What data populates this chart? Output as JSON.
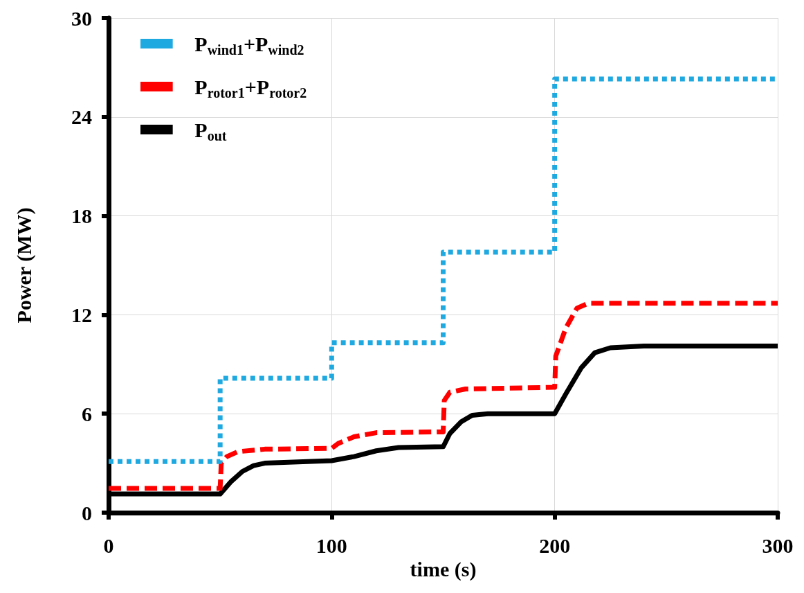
{
  "chart_data": {
    "type": "line",
    "xlabel": "time (s)",
    "ylabel": "Power (MW)",
    "xlim": [
      0,
      300
    ],
    "xticks": [
      0,
      100,
      200,
      300
    ],
    "ylim": [
      0,
      30
    ],
    "yticks": [
      0,
      6,
      12,
      18,
      24,
      30
    ],
    "grid": true,
    "legend": "top left",
    "series": [
      {
        "name": "P$_{wind1}$+P$_{wind2}$",
        "type": "step",
        "color": "#1fa9e1",
        "line_style": "dotted",
        "x": [
          0,
          50,
          100,
          150,
          200,
          300
        ],
        "values": [
          3.1,
          8.15,
          10.3,
          15.8,
          26.3,
          26.3
        ]
      },
      {
        "name": "P$_{rotor1}$+P$_{rotor2}$",
        "color": "#ff0000",
        "line_style": "dashed",
        "x": [
          0,
          50,
          50.5,
          53,
          58,
          70,
          100,
          103,
          110,
          120,
          150,
          150.5,
          153,
          160,
          200,
          200.5,
          205,
          210,
          215,
          300
        ],
        "values": [
          1.47,
          1.47,
          3.0,
          3.4,
          3.7,
          3.85,
          3.9,
          4.2,
          4.6,
          4.85,
          4.9,
          6.8,
          7.3,
          7.5,
          7.6,
          9.5,
          11.2,
          12.4,
          12.7,
          12.7
        ]
      },
      {
        "name": "P$_{out}$",
        "color": "#000000",
        "line_style": "solid",
        "x": [
          0,
          50,
          55,
          60,
          65,
          70,
          100,
          110,
          120,
          130,
          150,
          153,
          158,
          163,
          170,
          200,
          205,
          212,
          218,
          225,
          240,
          300
        ],
        "values": [
          1.13,
          1.13,
          1.9,
          2.5,
          2.85,
          3.0,
          3.15,
          3.4,
          3.75,
          3.95,
          4.0,
          4.8,
          5.5,
          5.9,
          6.0,
          6.0,
          7.2,
          8.8,
          9.7,
          10.0,
          10.1,
          10.1
        ]
      }
    ]
  }
}
